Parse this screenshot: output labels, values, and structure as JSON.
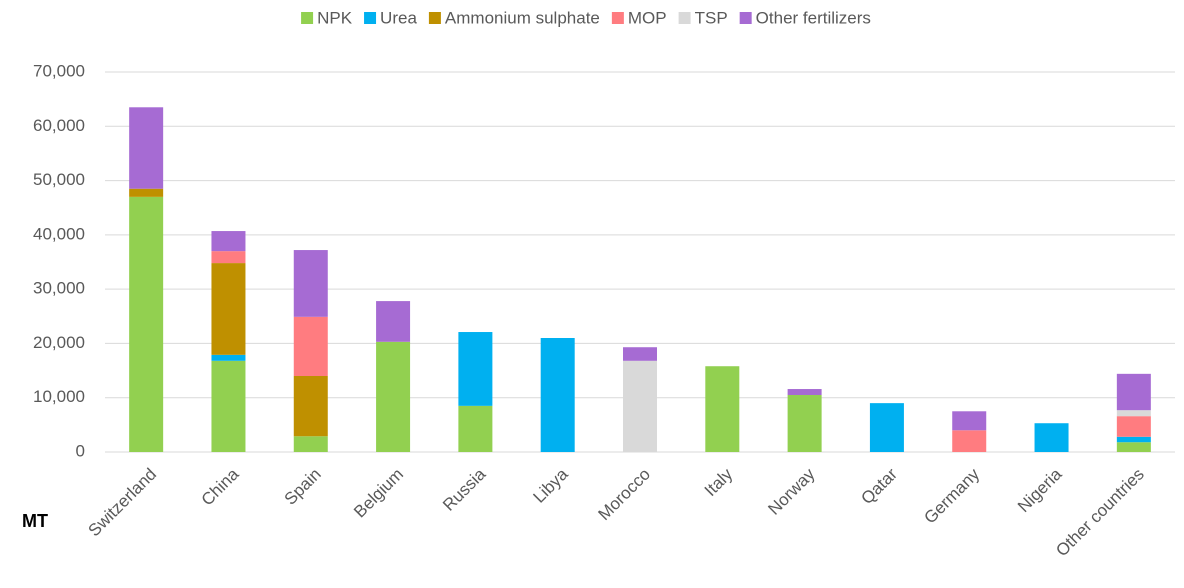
{
  "chart_data": {
    "type": "stacked_bar",
    "ylabel": "MT",
    "categories": [
      "Switzerland",
      "China",
      "Spain",
      "Belgium",
      "Russia",
      "Libya",
      "Morocco",
      "Italy",
      "Norway",
      "Qatar",
      "Germany",
      "Nigeria",
      "Other countries"
    ],
    "series": [
      {
        "name": "NPK",
        "color": "#92d050",
        "values": [
          47000,
          16800,
          2900,
          20300,
          8500,
          0,
          0,
          15800,
          10500,
          0,
          0,
          0,
          1800
        ]
      },
      {
        "name": "Urea",
        "color": "#00b0f0",
        "values": [
          0,
          1100,
          0,
          0,
          13600,
          21000,
          0,
          0,
          0,
          9000,
          0,
          5300,
          1000
        ]
      },
      {
        "name": "Ammonium sulphate",
        "color": "#bf9000",
        "values": [
          1500,
          16900,
          11100,
          0,
          0,
          0,
          0,
          0,
          0,
          0,
          0,
          0,
          0
        ]
      },
      {
        "name": "MOP",
        "color": "#ff7c80",
        "values": [
          0,
          2200,
          10900,
          0,
          0,
          0,
          0,
          0,
          0,
          0,
          4000,
          0,
          3800
        ]
      },
      {
        "name": "TSP",
        "color": "#d9d9d9",
        "values": [
          0,
          0,
          0,
          0,
          0,
          0,
          16800,
          0,
          0,
          0,
          0,
          0,
          1100
        ]
      },
      {
        "name": "Other fertilizers",
        "color": "#a66bd3",
        "values": [
          15000,
          3700,
          12300,
          7500,
          0,
          0,
          2500,
          0,
          1100,
          0,
          3500,
          0,
          6700
        ]
      }
    ],
    "ylim": [
      0,
      70000
    ],
    "yticks": [
      0,
      {
        "value": 10000,
        "label": "10,000"
      },
      {
        "value": 20000,
        "label": "20,000"
      },
      {
        "value": 30000,
        "label": "30,000"
      },
      {
        "value": 40000,
        "label": "40,000"
      },
      {
        "value": 50000,
        "label": "50,000"
      },
      {
        "value": 60000,
        "label": "60,000"
      },
      {
        "value": 70000,
        "label": "70,000"
      }
    ],
    "grid": true,
    "legend": "top"
  }
}
